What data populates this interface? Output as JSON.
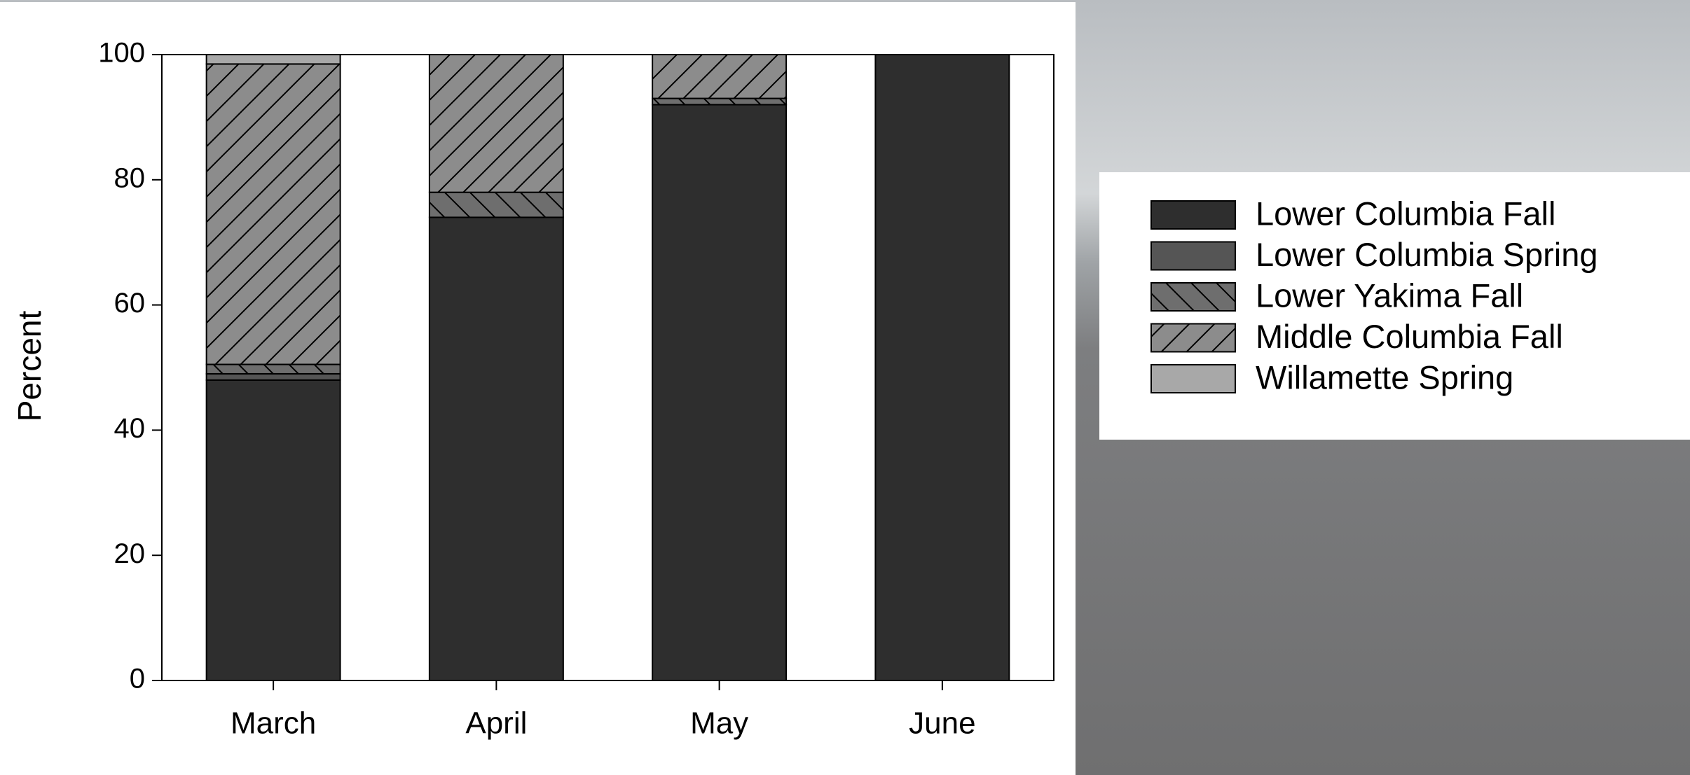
{
  "chart_data": {
    "type": "stacked_bar",
    "ylabel": "Percent",
    "categories": [
      "March",
      "April",
      "May",
      "June"
    ],
    "series": [
      {
        "name": "Lower Columbia Fall",
        "color": "#2e2e2e",
        "values": [
          48,
          74,
          92,
          100
        ]
      },
      {
        "name": "Lower Columbia Spring",
        "color": "#555555",
        "values": [
          1,
          0,
          0,
          0
        ]
      },
      {
        "name": "Lower Yakima Fall",
        "color": "#6e6e6e",
        "hatch": "backward",
        "values": [
          1.5,
          4,
          1,
          0
        ]
      },
      {
        "name": "Middle Columbia Fall",
        "color": "#8c8c8c",
        "hatch": "forward",
        "values": [
          48,
          22,
          7,
          0
        ]
      },
      {
        "name": "Willamette Spring",
        "color": "#a8a8a8",
        "values": [
          1.5,
          0,
          0,
          0
        ]
      }
    ],
    "ylim": [
      0,
      100
    ],
    "yticks": [
      0,
      20,
      40,
      60,
      80,
      100
    ],
    "legend": "right"
  }
}
